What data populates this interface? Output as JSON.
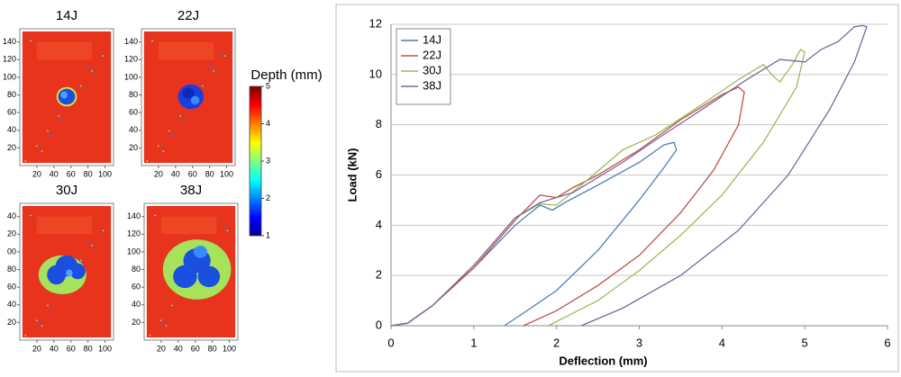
{
  "chart_data": [
    {
      "type": "image",
      "title": "14J",
      "xlim": [
        0,
        110
      ],
      "ylim": [
        0,
        155
      ],
      "xticks": [
        20,
        40,
        60,
        80,
        100
      ],
      "yticks": [
        20,
        40,
        60,
        80,
        100,
        120,
        140
      ]
    },
    {
      "type": "image",
      "title": "22J",
      "xlim": [
        0,
        110
      ],
      "ylim": [
        0,
        155
      ],
      "xticks": [
        20,
        40,
        60,
        80,
        100
      ],
      "yticks": [
        20,
        40,
        60,
        80,
        100,
        120,
        140
      ]
    },
    {
      "type": "image",
      "title": "30J",
      "xlim": [
        0,
        110
      ],
      "ylim": [
        0,
        155
      ],
      "xticks": [
        20,
        40,
        60,
        80,
        100
      ],
      "yticks": [
        20,
        40,
        60,
        80,
        {
          "value": 100,
          "label": "00"
        },
        {
          "value": 120,
          "label": "20"
        },
        {
          "value": 140,
          "label": "40"
        }
      ]
    },
    {
      "type": "image",
      "title": "38J",
      "xlim": [
        0,
        110
      ],
      "ylim": [
        0,
        155
      ],
      "xticks": [
        20,
        40,
        60,
        80,
        100
      ],
      "yticks": [
        20,
        40,
        60,
        80,
        100,
        120,
        140
      ]
    },
    {
      "type": "colorbar",
      "title": "Depth (mm)",
      "ylim": [
        1,
        5
      ],
      "yticks": [
        1,
        2,
        3,
        4,
        5
      ]
    },
    {
      "type": "line",
      "xlabel": "Deflection (mm)",
      "ylabel": "Load (kN)",
      "xlim": [
        0,
        6
      ],
      "ylim": [
        0,
        12
      ],
      "xticks": [
        0,
        1,
        2,
        3,
        4,
        5,
        6
      ],
      "yticks": [
        0,
        2,
        4,
        6,
        8,
        10,
        12
      ],
      "grid": true,
      "legend": "top-left",
      "series": [
        {
          "name": "14J",
          "color": "#4a7eba",
          "x": [
            0,
            0.2,
            0.5,
            1,
            1.5,
            1.8,
            1.95,
            2.1,
            2.5,
            3.0,
            3.3,
            3.42,
            3.45,
            3.3,
            3.0,
            2.5,
            2.0,
            1.6,
            1.37
          ],
          "values": [
            0,
            0.1,
            0.8,
            2.3,
            4.0,
            4.8,
            4.6,
            4.9,
            5.6,
            6.5,
            7.2,
            7.3,
            7.0,
            6.3,
            5.0,
            3.0,
            1.4,
            0.5,
            0
          ]
        },
        {
          "name": "22J",
          "color": "#c0504d",
          "x": [
            0,
            0.2,
            0.5,
            1,
            1.5,
            1.8,
            2.0,
            2.2,
            2.5,
            3.0,
            3.5,
            4.0,
            4.2,
            4.27,
            4.2,
            3.9,
            3.5,
            3.0,
            2.5,
            2.0,
            1.6
          ],
          "values": [
            0,
            0.1,
            0.8,
            2.3,
            4.2,
            5.2,
            5.1,
            5.5,
            6.0,
            7.0,
            8.2,
            9.2,
            9.5,
            9.3,
            8.0,
            6.2,
            4.5,
            2.8,
            1.6,
            0.6,
            0
          ]
        },
        {
          "name": "30J",
          "color": "#9bbb59",
          "x": [
            0,
            0.2,
            0.5,
            1,
            1.5,
            1.8,
            2.0,
            2.3,
            2.8,
            3.2,
            3.8,
            4.2,
            4.5,
            4.6,
            4.7,
            4.85,
            4.95,
            5.0,
            4.9,
            4.5,
            4.0,
            3.5,
            3.0,
            2.5,
            1.9
          ],
          "values": [
            0,
            0.1,
            0.8,
            2.4,
            4.3,
            4.85,
            4.8,
            5.6,
            7.0,
            7.6,
            8.9,
            9.8,
            10.4,
            10.0,
            9.7,
            10.4,
            11.0,
            10.9,
            9.5,
            7.3,
            5.2,
            3.6,
            2.2,
            1.0,
            0
          ]
        },
        {
          "name": "38J",
          "color": "#8064a2",
          "x": [
            0,
            0.2,
            0.5,
            1,
            1.5,
            1.8,
            2.2,
            2.8,
            3.2,
            3.8,
            4.3,
            4.7,
            5.0,
            5.2,
            5.4,
            5.6,
            5.7,
            5.75,
            5.6,
            5.3,
            4.8,
            4.2,
            3.5,
            2.8,
            2.3
          ],
          "values": [
            0,
            0.1,
            0.8,
            2.4,
            4.3,
            4.9,
            5.3,
            6.5,
            7.4,
            8.7,
            9.8,
            10.6,
            10.5,
            11.0,
            11.3,
            11.9,
            11.95,
            11.9,
            10.5,
            8.6,
            6.0,
            3.8,
            2.0,
            0.7,
            0
          ]
        }
      ]
    }
  ]
}
